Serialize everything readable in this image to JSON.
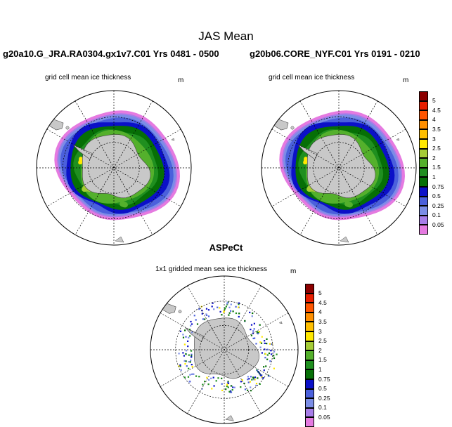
{
  "figure": {
    "title": "JAS Mean",
    "observation_title": "ASPeCt"
  },
  "panels": [
    {
      "id": "left",
      "heading": "g20a10.G_JRA.RA0304.gx1v7.C01  Yrs 0481 - 0500",
      "subtitle": "grid cell mean ice thickness",
      "unit": "m"
    },
    {
      "id": "right",
      "heading": "g20b06.CORE_NYF.C01  Yrs 0191 - 0210",
      "subtitle": "grid cell mean ice thickness",
      "unit": "m"
    },
    {
      "id": "obs",
      "subtitle": "1x1 gridded mean sea ice thickness",
      "unit": "m"
    }
  ],
  "colorbar": {
    "levels": [
      "0.05",
      "0.1",
      "0.25",
      "0.5",
      "0.75",
      "1",
      "1.5",
      "2",
      "2.5",
      "3",
      "3.5",
      "4",
      "4.5",
      "5"
    ],
    "colors": [
      "#e57ae0",
      "#a77de8",
      "#7b8de6",
      "#4b60dc",
      "#0b10c8",
      "#066f06",
      "#1f8f1f",
      "#54b02c",
      "#a5cc36",
      "#ffe800",
      "#ffbf00",
      "#ff8f00",
      "#ff5500",
      "#e81e00",
      "#8c0000"
    ]
  },
  "map": {
    "land_color": "#c8c8c8",
    "ocean_color": "#ffffff",
    "grid_style": "dashed",
    "projection": "south-polar-stereographic"
  }
}
